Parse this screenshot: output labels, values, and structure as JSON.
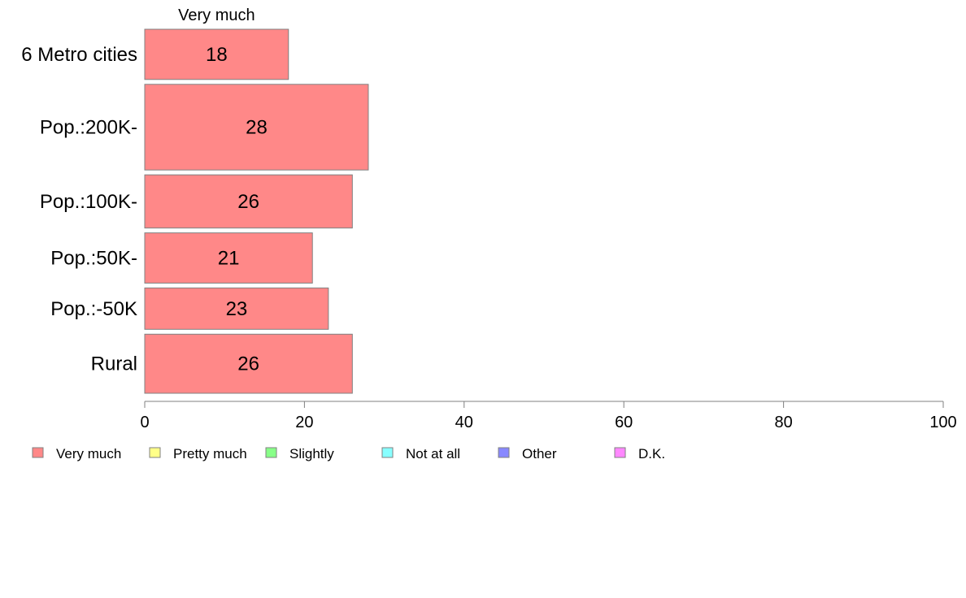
{
  "chart_data": {
    "type": "bar",
    "orientation": "horizontal",
    "stacked": true,
    "categories": [
      "6 Metro cities",
      "Pop.:200K-",
      "Pop.:100K-",
      "Pop.:50K-",
      "Pop.:-50K",
      "Rural"
    ],
    "category_weights": [
      0.17,
      0.29,
      0.18,
      0.17,
      0.14,
      0.2
    ],
    "series": [
      {
        "name": "Very much",
        "color": "#ff8888",
        "values": [
          18,
          28,
          26,
          21,
          23,
          26
        ]
      }
    ],
    "series_header": "Very much",
    "legend": [
      {
        "label": "Very much",
        "color": "#ff8888"
      },
      {
        "label": "Pretty much",
        "color": "#ffff88"
      },
      {
        "label": "Slightly",
        "color": "#88ff88"
      },
      {
        "label": "Not at all",
        "color": "#88ffff"
      },
      {
        "label": "Other",
        "color": "#8888ff"
      },
      {
        "label": "D.K.",
        "color": "#ff88ff"
      }
    ],
    "legend_position": "bottom",
    "xlim": [
      0,
      100
    ],
    "xticks": [
      0,
      20,
      40,
      60,
      80,
      100
    ],
    "grid": false,
    "title": "",
    "xlabel": "",
    "ylabel": ""
  }
}
